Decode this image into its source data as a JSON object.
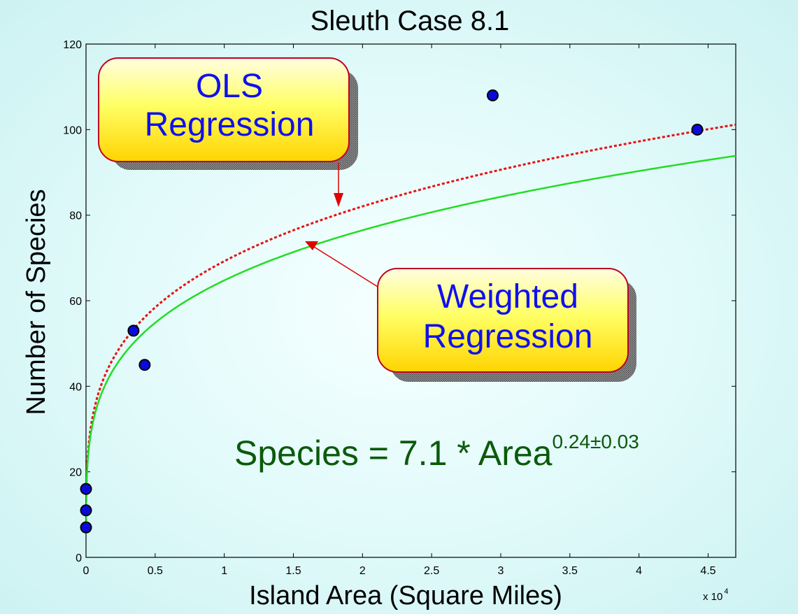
{
  "chart_data": {
    "type": "scatter",
    "title": "Sleuth Case 8.1",
    "xlabel": "Island Area (Square Miles)",
    "ylabel": "Number of Species",
    "x_multiplier_label": "x 10",
    "x_multiplier_exponent": "4",
    "xlim": [
      0,
      47000
    ],
    "ylim": [
      0,
      120
    ],
    "x_ticks": [
      {
        "value": 0,
        "label": "0"
      },
      {
        "value": 5000,
        "label": "0.5"
      },
      {
        "value": 10000,
        "label": "1"
      },
      {
        "value": 15000,
        "label": "1.5"
      },
      {
        "value": 20000,
        "label": "2"
      },
      {
        "value": 25000,
        "label": "2.5"
      },
      {
        "value": 30000,
        "label": "3"
      },
      {
        "value": 35000,
        "label": "3.5"
      },
      {
        "value": 40000,
        "label": "4"
      },
      {
        "value": 45000,
        "label": "4.5"
      }
    ],
    "y_ticks": [
      {
        "value": 0,
        "label": "0"
      },
      {
        "value": 20,
        "label": "20"
      },
      {
        "value": 40,
        "label": "40"
      },
      {
        "value": 60,
        "label": "60"
      },
      {
        "value": 80,
        "label": "80"
      },
      {
        "value": 100,
        "label": "100"
      },
      {
        "value": 120,
        "label": "120"
      }
    ],
    "points": [
      {
        "x": 0,
        "y": 16
      },
      {
        "x": 0,
        "y": 11
      },
      {
        "x": 0,
        "y": 7
      },
      {
        "x": 3435,
        "y": 53
      },
      {
        "x": 4244,
        "y": 45
      },
      {
        "x": 29418,
        "y": 108
      },
      {
        "x": 44218,
        "y": 100
      }
    ],
    "point_color": "#0a0adc",
    "series": [
      {
        "coef": 7.25,
        "exponent": 0.245,
        "color": "#e81010",
        "style": "dotted"
      },
      {
        "coef": 7.1,
        "exponent": 0.24,
        "color": "#22dd22",
        "style": "solid"
      }
    ],
    "annotations": {
      "ols_box": {
        "lines": [
          "OLS",
          "Regression"
        ]
      },
      "weighted_box": {
        "lines": [
          "Weighted",
          "Regression"
        ]
      },
      "equation": {
        "main": "Species = 7.1 * Area",
        "exponent": "0.24±0.03"
      }
    }
  }
}
